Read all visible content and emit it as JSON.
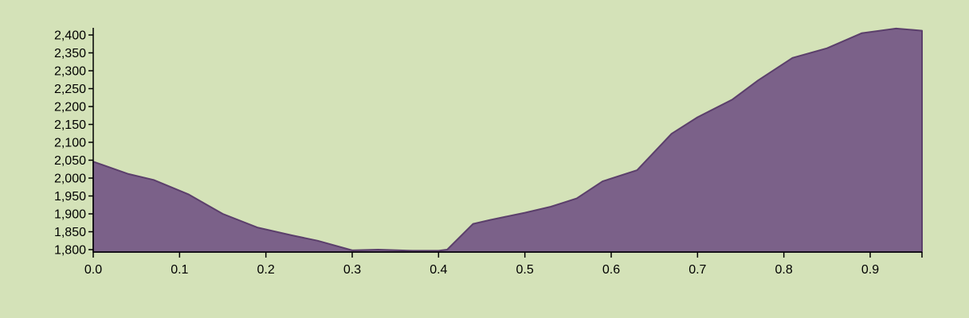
{
  "chart_data": {
    "type": "area",
    "title": "",
    "xlabel": "",
    "ylabel": "",
    "xlim": [
      0,
      0.96
    ],
    "ylim": [
      1800,
      2420
    ],
    "x_ticks": [
      {
        "value": 0.0,
        "label": "0.0"
      },
      {
        "value": 0.1,
        "label": "0.1"
      },
      {
        "value": 0.2,
        "label": "0.2"
      },
      {
        "value": 0.3,
        "label": "0.3"
      },
      {
        "value": 0.4,
        "label": "0.4"
      },
      {
        "value": 0.5,
        "label": "0.5"
      },
      {
        "value": 0.6,
        "label": "0.6"
      },
      {
        "value": 0.7,
        "label": "0.7"
      },
      {
        "value": 0.8,
        "label": "0.8"
      },
      {
        "value": 0.9,
        "label": "0.9"
      }
    ],
    "y_ticks": [
      {
        "value": 1800,
        "label": "1,800"
      },
      {
        "value": 1850,
        "label": "1,850"
      },
      {
        "value": 1900,
        "label": "1,900"
      },
      {
        "value": 1950,
        "label": "1,950"
      },
      {
        "value": 2000,
        "label": "2,000"
      },
      {
        "value": 2050,
        "label": "2,050"
      },
      {
        "value": 2100,
        "label": "2,100"
      },
      {
        "value": 2150,
        "label": "2,150"
      },
      {
        "value": 2200,
        "label": "2,200"
      },
      {
        "value": 2250,
        "label": "2,250"
      },
      {
        "value": 2300,
        "label": "2,300"
      },
      {
        "value": 2350,
        "label": "2,350"
      },
      {
        "value": 2400,
        "label": "2,400"
      }
    ],
    "grid": false,
    "colors": {
      "background": "#d4e2b8",
      "fill": "#7b6189",
      "stroke": "#5b3f6b",
      "axis": "#000000"
    },
    "series": [
      {
        "x": [
          0.0,
          0.04,
          0.07,
          0.11,
          0.15,
          0.19,
          0.23,
          0.26,
          0.3,
          0.33,
          0.37,
          0.4,
          0.41,
          0.44,
          0.46,
          0.5,
          0.53,
          0.56,
          0.59,
          0.63,
          0.67,
          0.7,
          0.74,
          0.77,
          0.81,
          0.85,
          0.89,
          0.93,
          0.96
        ],
        "y": [
          2046,
          2012,
          1995,
          1955,
          1900,
          1862,
          1840,
          1825,
          1798,
          1800,
          1797,
          1797,
          1800,
          1872,
          1883,
          1903,
          1920,
          1943,
          1991,
          2022,
          2124,
          2170,
          2219,
          2273,
          2336,
          2363,
          2405,
          2418,
          2412
        ]
      }
    ]
  }
}
